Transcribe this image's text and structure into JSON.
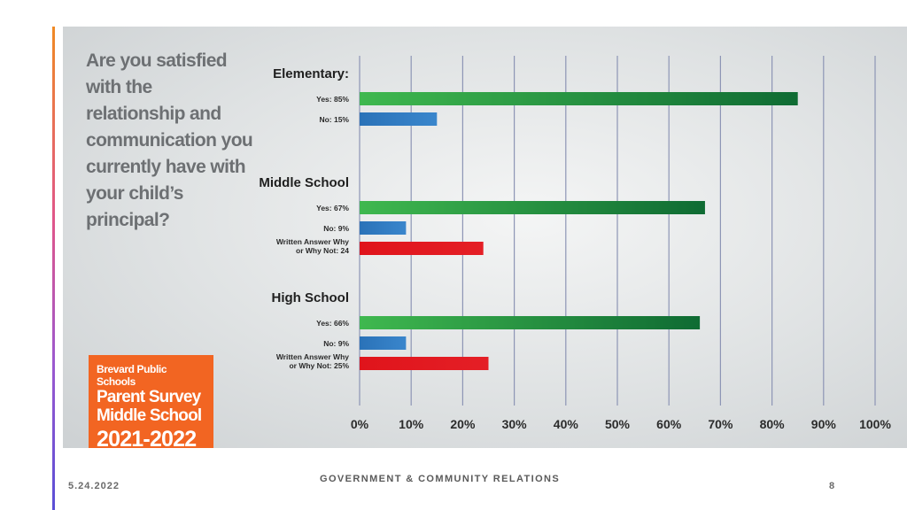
{
  "question": "Are you satisfied with the relationship and communication you currently have with your child’s principal?",
  "badge": {
    "line1": "Brevard Public Schools",
    "line2": "Parent Survey",
    "line3": "Middle School",
    "line4": "2021-2022"
  },
  "footer": {
    "date": "5.24.2022",
    "title": "GOVERNMENT & COMMUNITY RELATIONS",
    "page": "8"
  },
  "colors": {
    "yes": "#2e9e48",
    "no": "#2a72b8",
    "written": "#e0141b",
    "grid": "#8d95b5"
  },
  "chart_data": {
    "type": "bar",
    "orientation": "horizontal",
    "xlim": [
      0,
      100
    ],
    "x_ticks": [
      "0%",
      "10%",
      "20%",
      "30%",
      "40%",
      "50%",
      "60%",
      "70%",
      "80%",
      "90%",
      "100%"
    ],
    "grid": true,
    "groups": [
      {
        "name": "Elementary:",
        "bars": [
          {
            "label": "Yes: 85%",
            "value": 85,
            "kind": "yes"
          },
          {
            "label": "No: 15%",
            "value": 15,
            "kind": "no"
          }
        ]
      },
      {
        "name": "Middle School",
        "bars": [
          {
            "label": "Yes: 67%",
            "value": 67,
            "kind": "yes"
          },
          {
            "label": "No: 9%",
            "value": 9,
            "kind": "no"
          },
          {
            "label": "Written Answer Why or Why Not: 24",
            "value": 24,
            "kind": "written"
          }
        ]
      },
      {
        "name": "High School",
        "bars": [
          {
            "label": "Yes: 66%",
            "value": 66,
            "kind": "yes"
          },
          {
            "label": "No: 9%",
            "value": 9,
            "kind": "no"
          },
          {
            "label": "Written Answer Why or Why Not: 25%",
            "value": 25,
            "kind": "written"
          }
        ]
      }
    ]
  }
}
